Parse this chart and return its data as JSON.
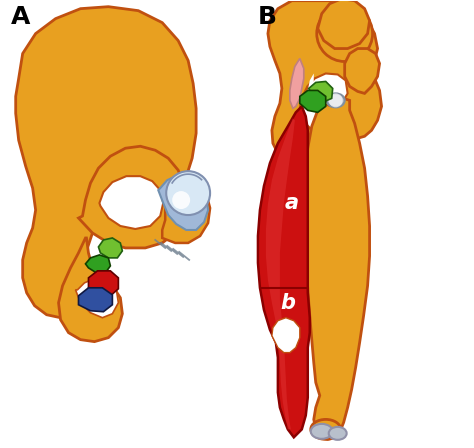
{
  "background_color": "#ffffff",
  "label_A": "A",
  "label_B": "B",
  "label_a": "a",
  "label_b": "b",
  "bone_color": "#E8A020",
  "bone_outline": "#C05010",
  "muscle_red": "#CC1010",
  "muscle_dark": "#8B0000",
  "muscle_light": "#E03030",
  "cartilage_blue": "#A0B8D8",
  "cartilage_light": "#D8E8F5",
  "green_bright": "#70C030",
  "green_dark": "#30A020",
  "red_spot": "#CC1010",
  "blue_spot": "#3050A0",
  "gray_cart": "#B8C0CC",
  "pink_tendon": "#F0A0A0",
  "figsize": [
    4.74,
    4.48
  ],
  "dpi": 100
}
